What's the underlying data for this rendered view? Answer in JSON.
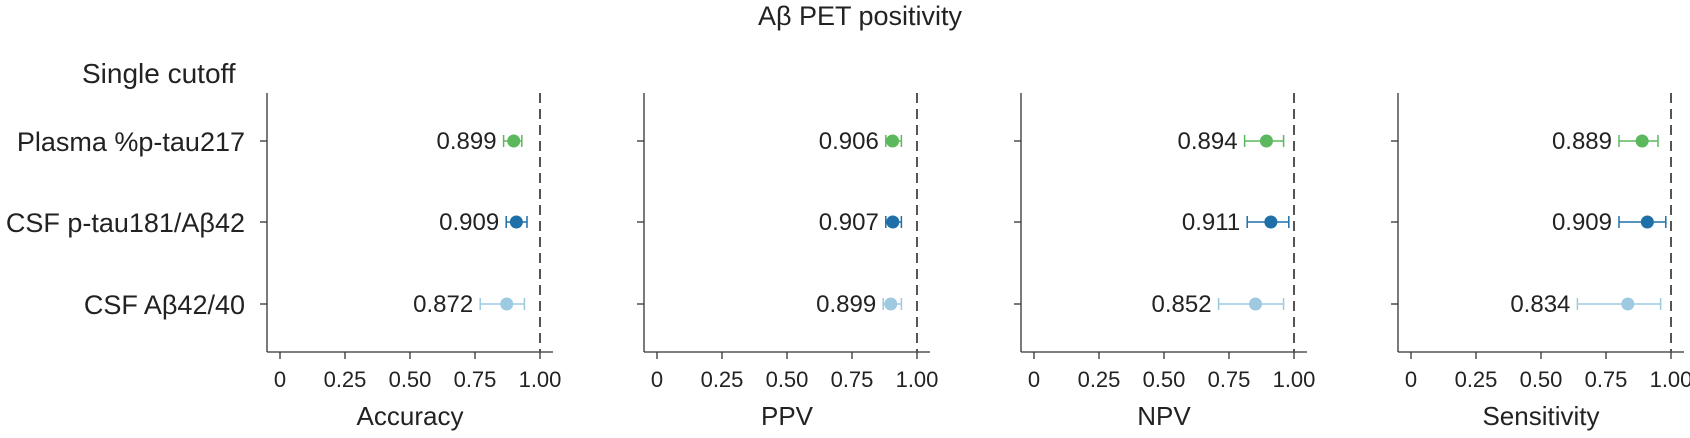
{
  "chart_data": {
    "type": "forest",
    "title": "Aβ PET positivity",
    "subtitle": "Single cutoff",
    "rows": [
      "Plasma %p-tau217",
      "CSF p-tau181/Aβ42",
      "CSF Aβ42/40"
    ],
    "row_colors": [
      "#5cb85c",
      "#1f6fa8",
      "#9ecae1"
    ],
    "xlim": [
      0,
      1
    ],
    "ticks": [
      0,
      0.25,
      0.5,
      0.75,
      1.0
    ],
    "tick_labels": [
      "0",
      "0.25",
      "0.50",
      "0.75",
      "1.00"
    ],
    "reference_line": 1.0,
    "panels": [
      {
        "xlabel": "Accuracy",
        "points": [
          {
            "value": 0.899,
            "label": "0.899",
            "lo": 0.86,
            "hi": 0.93
          },
          {
            "value": 0.909,
            "label": "0.909",
            "lo": 0.87,
            "hi": 0.95
          },
          {
            "value": 0.872,
            "label": "0.872",
            "lo": 0.77,
            "hi": 0.94
          }
        ]
      },
      {
        "xlabel": "PPV",
        "points": [
          {
            "value": 0.906,
            "label": "0.906",
            "lo": 0.88,
            "hi": 0.94
          },
          {
            "value": 0.907,
            "label": "0.907",
            "lo": 0.88,
            "hi": 0.94
          },
          {
            "value": 0.899,
            "label": "0.899",
            "lo": 0.87,
            "hi": 0.94
          }
        ]
      },
      {
        "xlabel": "NPV",
        "points": [
          {
            "value": 0.894,
            "label": "0.894",
            "lo": 0.81,
            "hi": 0.96
          },
          {
            "value": 0.911,
            "label": "0.911",
            "lo": 0.82,
            "hi": 0.98
          },
          {
            "value": 0.852,
            "label": "0.852",
            "lo": 0.71,
            "hi": 0.96
          }
        ]
      },
      {
        "xlabel": "Sensitivity",
        "points": [
          {
            "value": 0.889,
            "label": "0.889",
            "lo": 0.8,
            "hi": 0.95
          },
          {
            "value": 0.909,
            "label": "0.909",
            "lo": 0.8,
            "hi": 0.98
          },
          {
            "value": 0.834,
            "label": "0.834",
            "lo": 0.64,
            "hi": 0.96
          }
        ]
      }
    ]
  }
}
